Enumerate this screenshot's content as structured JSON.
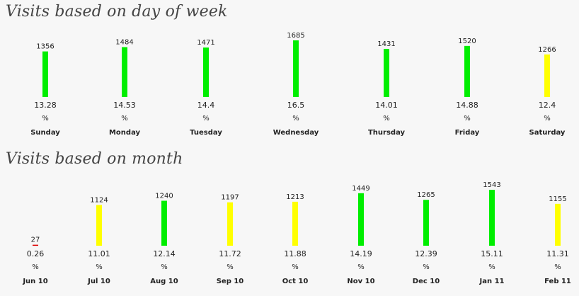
{
  "weekday_section": {
    "title": "Visits based on day of week"
  },
  "month_section": {
    "title": "Visits based on month"
  },
  "colors": {
    "high": "#00ee00",
    "medium": "#ffff00",
    "low": "#dd0000"
  },
  "chart_data": [
    {
      "type": "bar",
      "title": "Visits based on day of week",
      "categories": [
        "Sunday",
        "Monday",
        "Tuesday",
        "Wednesday",
        "Thursday",
        "Friday",
        "Saturday"
      ],
      "values": [
        1356,
        1484,
        1471,
        1685,
        1431,
        1520,
        1266
      ],
      "percentages": [
        "13.28",
        "14.53",
        "14.4",
        "16.5",
        "14.01",
        "14.88",
        "12.4"
      ],
      "percent_unit": "%",
      "bar_colors": [
        "#00ee00",
        "#00ee00",
        "#00ee00",
        "#00ee00",
        "#00ee00",
        "#00ee00",
        "#ffff00"
      ]
    },
    {
      "type": "bar",
      "title": "Visits based on month",
      "categories": [
        "Jun 10",
        "Jul 10",
        "Aug 10",
        "Sep 10",
        "Oct 10",
        "Nov 10",
        "Dec 10",
        "Jan 11",
        "Feb 11"
      ],
      "values": [
        27,
        1124,
        1240,
        1197,
        1213,
        1449,
        1265,
        1543,
        1155
      ],
      "percentages": [
        "0.26",
        "11.01",
        "12.14",
        "11.72",
        "11.88",
        "14.19",
        "12.39",
        "15.11",
        "11.31"
      ],
      "percent_unit": "%",
      "bar_colors": [
        "#dd0000",
        "#ffff00",
        "#00ee00",
        "#ffff00",
        "#ffff00",
        "#00ee00",
        "#00ee00",
        "#00ee00",
        "#ffff00"
      ]
    }
  ]
}
